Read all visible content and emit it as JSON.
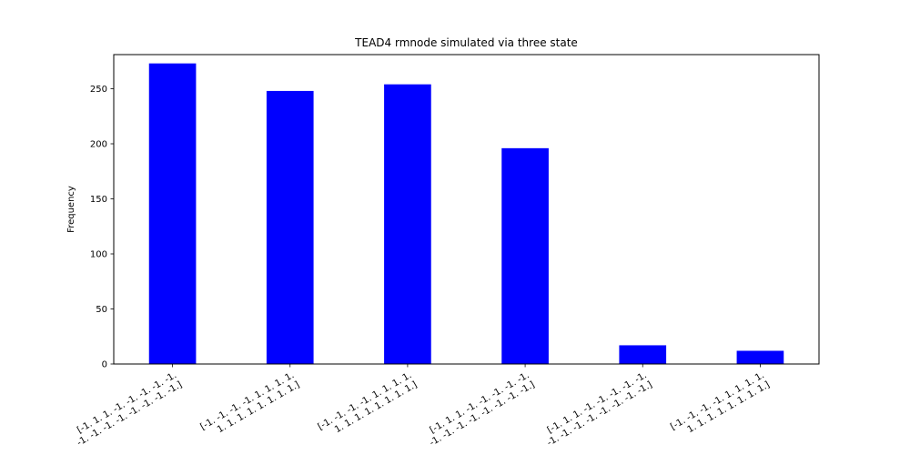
{
  "chart_data": {
    "type": "bar",
    "title": "TEAD4 rmnode simulated via three state",
    "xlabel": "",
    "ylabel": "Frequency",
    "ylim": [
      0,
      281
    ],
    "yticks": [
      0,
      50,
      100,
      150,
      200,
      250
    ],
    "bar_color": "#0000ff",
    "grid": false,
    "legend": "none",
    "categories": [
      [
        "[-1. 1. 1. -1. -1. -1. -1. -1.",
        " -1. -1. -1. -1. -1. -1. -1. -1.]"
      ],
      [
        "[-1. -1. -1. -1. 1. 1. 1. 1.",
        " 1. 1. 1. 1. 1. 1. 1. 1.]"
      ],
      [
        "[-1. -1. -1. -1. 1. 1. 1. 1.",
        " 1. 1. 1. 1. 1. 1. 1. 1.]"
      ],
      [
        "[-1. 1. 1. -1. -1. -1. -1. -1.",
        " -1. -1. -1. -1. -1. -1. -1. -1.]"
      ],
      [
        "[-1. 1. 1. -1. -1. -1. -1. -1.",
        " -1. -1. -1. -1. -1. -1. -1. -1.]"
      ],
      [
        "[-1. -1. -1. -1. 1. 1. 1. 1.",
        " 1. 1. 1. 1. 1. 1. 1. 1.]"
      ]
    ],
    "values": [
      273,
      248,
      254,
      196,
      17,
      12
    ]
  }
}
